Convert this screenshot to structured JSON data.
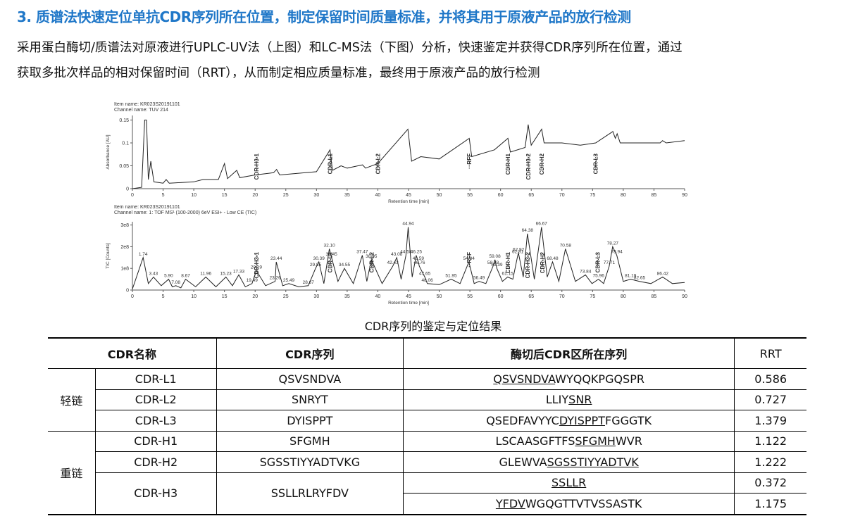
{
  "header": {
    "title": "3. 质谱法快速定位单抗CDR序列所在位置，制定保留时间质量标准，并将其用于原液产品的放行检测"
  },
  "intro": {
    "lines": [
      "采用蛋白酶切/质谱法对原液进行UPLC-UV法（上图）和LC-MS法（下图）分析，快速鉴定并获得CDR序列所在位置，通过",
      "获取多批次样品的相对保留时间（RRT），从而制定相应质量标准，最终用于原液产品的放行检测"
    ]
  },
  "chart_data": [
    {
      "type": "line",
      "item_name": "Item name: KR023S20191101",
      "channel_name": "Channel name: TUV 214",
      "xlabel": "Retention time [min]",
      "ylabel": "Absorbance [AU]",
      "color": "#222222",
      "xlim": [
        0,
        90
      ],
      "xticks": [
        0,
        5,
        10,
        15,
        20,
        25,
        30,
        35,
        40,
        45,
        50,
        55,
        60,
        65,
        70,
        75,
        80,
        85,
        90
      ],
      "ylim": [
        0,
        0.16
      ],
      "yticks": [
        0,
        0.05,
        0.1,
        0.15
      ],
      "x": [
        0,
        1.5,
        2,
        2.3,
        2.6,
        3,
        3.5,
        5,
        5.5,
        6,
        10,
        11.5,
        14,
        15,
        15.5,
        17,
        17.5,
        20,
        23,
        23.5,
        24,
        30,
        32.2,
        32.6,
        34,
        35,
        37.5,
        38,
        40,
        44.9,
        45.5,
        47,
        50,
        54.9,
        55.3,
        59,
        61.2,
        61.6,
        64,
        64.5,
        65,
        66.7,
        67.1,
        70,
        73,
        75.5,
        78.3,
        78.7,
        79,
        79.5,
        86,
        86.4,
        87,
        90
      ],
      "values": [
        0,
        0.003,
        0.15,
        0.15,
        0.02,
        0.06,
        0.015,
        0.012,
        0.02,
        0.012,
        0.015,
        0.02,
        0.02,
        0.055,
        0.022,
        0.04,
        0.024,
        0.03,
        0.035,
        0.042,
        0.03,
        0.037,
        0.085,
        0.04,
        0.05,
        0.045,
        0.052,
        0.045,
        0.055,
        0.13,
        0.06,
        0.07,
        0.065,
        0.11,
        0.07,
        0.085,
        0.11,
        0.08,
        0.09,
        0.14,
        0.095,
        0.13,
        0.1,
        0.1,
        0.095,
        0.1,
        0.125,
        0.11,
        0.12,
        0.1,
        0.1,
        0.105,
        0.1,
        0.105
      ],
      "annotations": [
        {
          "text": "CDR-H3-1",
          "x": 20.2
        },
        {
          "text": "CDR-L1",
          "x": 32.2
        },
        {
          "text": "CDR-L2",
          "x": 40
        },
        {
          "text": "RFF",
          "x": 54.9
        },
        {
          "text": "CDR-H1",
          "x": 61.2
        },
        {
          "text": "CDR-H3-2",
          "x": 64.5
        },
        {
          "text": "CDR-H2",
          "x": 66.7
        },
        {
          "text": "CDR-L3",
          "x": 75.5
        }
      ]
    },
    {
      "type": "line",
      "item_name": "Item name: KR023S20191101",
      "channel_name": "Channel name: 1: TOF MS¹ (100-2000) 6eV ESI+ - Low CE (TIC)",
      "xlabel": "Retention time [min]",
      "ylabel": "TIC [Counts]",
      "color": "#222222",
      "xlim": [
        0,
        90
      ],
      "xticks": [
        0,
        5,
        10,
        15,
        20,
        25,
        30,
        35,
        40,
        45,
        50,
        55,
        60,
        65,
        70,
        75,
        80,
        85,
        90
      ],
      "ylim": [
        0,
        315000000
      ],
      "yticks": [
        0,
        {
          "value": 100000000,
          "label": "1e8"
        },
        {
          "value": 200000000,
          "label": "2e8"
        },
        {
          "value": 300000000,
          "label": "3e8"
        }
      ],
      "x": [
        0,
        1.74,
        2.6,
        3.43,
        4.7,
        5.9,
        6.5,
        7.08,
        7.9,
        8.67,
        10.3,
        11.96,
        13.6,
        15.23,
        16.3,
        17.33,
        18.4,
        19.49,
        20.19,
        21.7,
        23.26,
        23.44,
        24.5,
        25.49,
        27.1,
        28.67,
        29.85,
        30.39,
        31.2,
        32.1,
        32.45,
        33.5,
        34.55,
        36,
        37.47,
        38.2,
        38.95,
        40.7,
        42.43,
        43.08,
        43.8,
        44.58,
        44.94,
        45.6,
        46.25,
        46.59,
        46.76,
        47.65,
        48.06,
        50,
        51.95,
        53.4,
        54.84,
        55.7,
        56.49,
        57.6,
        58.78,
        59.08,
        59.39,
        60.3,
        61.15,
        62,
        62.81,
        62.92,
        63.7,
        64.38,
        65.5,
        66.67,
        67.6,
        68.48,
        69.5,
        70.58,
        72.2,
        73.84,
        74.9,
        75.96,
        76.8,
        77.71,
        78.27,
        78.94,
        80,
        81.19,
        82.65,
        84.5,
        86.42,
        88,
        90
      ],
      "values": [
        5000000.0,
        150000000.0,
        30000000.0,
        60000000.0,
        20000000.0,
        50000000.0,
        15000000.0,
        20000000.0,
        10000000.0,
        50000000.0,
        15000000.0,
        60000000.0,
        15000000.0,
        60000000.0,
        20000000.0,
        70000000.0,
        15000000.0,
        30000000.0,
        90000000.0,
        20000000.0,
        40000000.0,
        130000000.0,
        20000000.0,
        30000000.0,
        15000000.0,
        20000000.0,
        100000000.0,
        130000000.0,
        30000000.0,
        190000000.0,
        150000000.0,
        40000000.0,
        100000000.0,
        30000000.0,
        160000000.0,
        40000000.0,
        140000000.0,
        30000000.0,
        110000000.0,
        150000000.0,
        50000000.0,
        160000000.0,
        290000000.0,
        60000000.0,
        160000000.0,
        130000000.0,
        110000000.0,
        60000000.0,
        30000000.0,
        25000000.0,
        50000000.0,
        30000000.0,
        130000000.0,
        30000000.0,
        40000000.0,
        30000000.0,
        110000000.0,
        140000000.0,
        100000000.0,
        40000000.0,
        60000000.0,
        50000000.0,
        160000000.0,
        170000000.0,
        60000000.0,
        260000000.0,
        50000000.0,
        290000000.0,
        60000000.0,
        130000000.0,
        40000000.0,
        190000000.0,
        40000000.0,
        70000000.0,
        30000000.0,
        50000000.0,
        30000000.0,
        110000000.0,
        200000000.0,
        160000000.0,
        40000000.0,
        50000000.0,
        40000000.0,
        30000000.0,
        60000000.0,
        30000000.0,
        35000000.0
      ],
      "x_labels": [
        null,
        "1.74",
        null,
        "3.43",
        null,
        "5.90",
        null,
        "7.08",
        null,
        "8.67",
        null,
        "11.96",
        null,
        "15.23",
        null,
        "17.33",
        null,
        "19.49",
        "20.19",
        null,
        "23.26",
        "23.44",
        null,
        "25.49",
        null,
        "28.67",
        "29.85",
        "30.39",
        null,
        "32.10",
        "32.45",
        null,
        "34.55",
        null,
        "37.47",
        null,
        "38.95",
        null,
        "42.43",
        "43.08",
        null,
        "44.58",
        "44.94",
        null,
        "46.25",
        "46.59",
        "46.76",
        "47.65",
        "48.06",
        null,
        "51.95",
        null,
        "54.84",
        null,
        "56.49",
        null,
        "58.78",
        "59.08",
        "59.39",
        null,
        "61.15",
        null,
        "62.81",
        "62.92",
        null,
        "64.38",
        null,
        "66.67",
        null,
        "68.48",
        null,
        "70.58",
        null,
        "73.84",
        null,
        "75.96",
        null,
        "77.71",
        "78.27",
        "78.94",
        null,
        "81.19",
        "82.65",
        null,
        "86.42",
        null,
        null
      ],
      "annotations": [
        {
          "text": "CDR-H3-1",
          "x": 20.2
        },
        {
          "text": "CDR-L1",
          "x": 32.2
        },
        {
          "text": "CDR-L2",
          "x": 39
        },
        {
          "text": "RFF",
          "x": 54.9
        },
        {
          "text": "CDR-H1",
          "x": 61.2
        },
        {
          "text": "CDR-H3-2",
          "x": 64.4
        },
        {
          "text": "CDR-H2",
          "x": 66.8
        },
        {
          "text": "CDR-L3",
          "x": 75.8
        }
      ]
    }
  ],
  "table": {
    "caption": "CDR序列的鉴定与定位结果",
    "headers": [
      "CDR名称",
      "CDR序列",
      "酶切后CDR区所在序列",
      "RRT"
    ],
    "groups": [
      {
        "label": "轻链",
        "cdrs": [
          {
            "name": "CDR-L1",
            "sequence": "QSVSNDVA",
            "regions": [
              {
                "parts": [
                  {
                    "text": "QSVSNDVA",
                    "underline": true
                  },
                  {
                    "text": "WYQQKPGQSPR",
                    "underline": false
                  }
                ],
                "rrt": 0.586
              }
            ]
          },
          {
            "name": "CDR-L2",
            "sequence": "SNRYT",
            "regions": [
              {
                "parts": [
                  {
                    "text": "LLIY",
                    "underline": false
                  },
                  {
                    "text": "SNR",
                    "underline": true
                  }
                ],
                "rrt": 0.727
              }
            ]
          },
          {
            "name": "CDR-L3",
            "sequence": "DYISPPT",
            "regions": [
              {
                "parts": [
                  {
                    "text": "QSEDFAVYYC",
                    "underline": false
                  },
                  {
                    "text": "DYISPPT",
                    "underline": true
                  },
                  {
                    "text": "FGGGTK",
                    "underline": false
                  }
                ],
                "rrt": 1.379
              }
            ]
          }
        ]
      },
      {
        "label": "重链",
        "cdrs": [
          {
            "name": "CDR-H1",
            "sequence": "SFGMH",
            "regions": [
              {
                "parts": [
                  {
                    "text": "LSCAASGFTFS",
                    "underline": false
                  },
                  {
                    "text": "SFGMH",
                    "underline": true
                  },
                  {
                    "text": "WVR",
                    "underline": false
                  }
                ],
                "rrt": 1.122
              }
            ]
          },
          {
            "name": "CDR-H2",
            "sequence": "SGSSTIYYADTVKG",
            "regions": [
              {
                "parts": [
                  {
                    "text": "GLEWVA",
                    "underline": false
                  },
                  {
                    "text": "SGSSTIYYADTVK",
                    "underline": true
                  }
                ],
                "rrt": 1.222
              }
            ]
          },
          {
            "name": "CDR-H3",
            "sequence": "SSLLRLRYFDV",
            "regions": [
              {
                "parts": [
                  {
                    "text": "SSLLR",
                    "underline": true
                  }
                ],
                "rrt": 0.372
              },
              {
                "parts": [
                  {
                    "text": "YFDV",
                    "underline": true
                  },
                  {
                    "text": "WGQGTTVTVSSASTK",
                    "underline": false
                  }
                ],
                "rrt": 1.175
              }
            ]
          }
        ]
      }
    ]
  }
}
